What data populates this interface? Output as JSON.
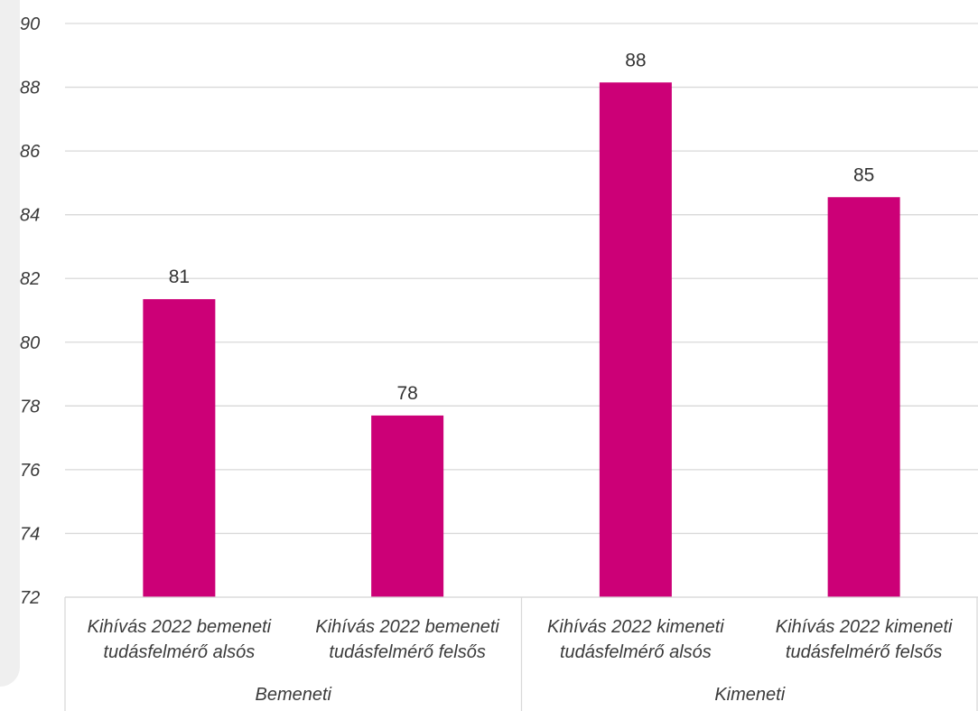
{
  "chart_data": {
    "type": "bar",
    "title": "",
    "xlabel": "",
    "ylabel": "",
    "ylim": [
      72,
      90
    ],
    "yticks": [
      72,
      74,
      76,
      78,
      80,
      82,
      84,
      86,
      88,
      90
    ],
    "grid": true,
    "legend": "none",
    "bar_color": "#cc0077",
    "categories": [
      [
        "Kihívás 2022 bemeneti",
        "tudásfelmérő alsós"
      ],
      [
        "Kihívás 2022 bemeneti",
        "tudásfelmérő felsős"
      ],
      [
        "Kihívás 2022 kimeneti",
        "tudásfelmérő alsós"
      ],
      [
        "Kihívás 2022 kimeneti",
        "tudásfelmérő felsős"
      ]
    ],
    "values": [
      81.35,
      77.7,
      88.15,
      84.55
    ],
    "data_labels": [
      "81",
      "78",
      "88",
      "85"
    ],
    "groups": [
      {
        "label": "Bemeneti",
        "categories": [
          0,
          1
        ]
      },
      {
        "label": "Kimeneti",
        "categories": [
          2,
          3
        ]
      }
    ]
  }
}
